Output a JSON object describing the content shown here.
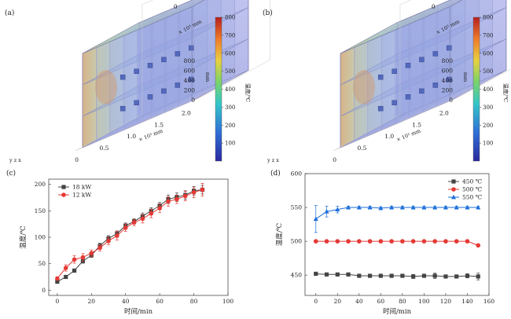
{
  "panel_labels": [
    "(a)",
    "(b)",
    "(c)",
    "(d)"
  ],
  "sim_panels": [
    {
      "label": "(a)",
      "axis_text": {
        "top_unit": "× 10³ mm",
        "top_ticks": [
          "1.0",
          "0.5",
          "0"
        ],
        "vertical_unit": "mm",
        "vertical_ticks": [
          "800",
          "600",
          "400",
          "200",
          "0"
        ],
        "front_unit": "× 10³ mm",
        "front_ticks": [
          "0",
          "0.5",
          "1.0",
          "1.5",
          "2.0"
        ],
        "axes_triad": "y  z  x"
      },
      "colorbar": {
        "title": "温度/℃",
        "ticks": [
          "800",
          "700",
          "600",
          "500",
          "400",
          "300",
          "200",
          "100"
        ]
      }
    },
    {
      "label": "(b)",
      "axis_text": {
        "top_unit": "× 10³ mm",
        "top_ticks": [
          "1.0",
          "0.5",
          "0"
        ],
        "vertical_unit": "mm",
        "vertical_ticks": [
          "800",
          "600",
          "400",
          "200",
          "0"
        ],
        "front_unit": "× 10³ mm",
        "front_ticks": [
          "0",
          "0.5",
          "1.0",
          "1.5",
          "2.0"
        ],
        "axes_triad": "y  z  x"
      },
      "colorbar": {
        "title": "温度/℃",
        "ticks": [
          "800",
          "700",
          "600",
          "500",
          "400",
          "300",
          "200",
          "100"
        ]
      }
    }
  ],
  "chart_data": [
    {
      "label": "(c)",
      "type": "line",
      "xlabel": "时间/min",
      "ylabel": "温度/℃",
      "xlim": [
        -5,
        100
      ],
      "ylim": [
        -10,
        210
      ],
      "xticks": [
        "0",
        "20",
        "40",
        "60",
        "80",
        "100"
      ],
      "yticks": [
        "0",
        "50",
        "100",
        "150",
        "200"
      ],
      "legend_position": "top-left",
      "series": [
        {
          "name": "18 kW",
          "color": "#444444",
          "marker": "square",
          "x": [
            0,
            5,
            10,
            15,
            20,
            25,
            30,
            35,
            40,
            45,
            50,
            55,
            60,
            65,
            70,
            75,
            80,
            85
          ],
          "y": [
            16,
            25,
            37,
            55,
            66,
            84,
            98,
            107,
            122,
            130,
            140,
            150,
            160,
            172,
            176,
            180,
            188,
            190
          ],
          "err": [
            3,
            3,
            3,
            4,
            4,
            5,
            5,
            5,
            5,
            5,
            6,
            6,
            6,
            8,
            8,
            8,
            8,
            8
          ]
        },
        {
          "name": "12 kW",
          "color": "#e53935",
          "marker": "circle",
          "x": [
            0,
            5,
            10,
            15,
            20,
            25,
            30,
            35,
            40,
            45,
            50,
            55,
            60,
            65,
            70,
            75,
            80,
            85
          ],
          "y": [
            22,
            42,
            58,
            62,
            70,
            80,
            93,
            103,
            118,
            128,
            135,
            145,
            155,
            168,
            172,
            178,
            185,
            190
          ],
          "err": [
            3,
            6,
            7,
            7,
            6,
            6,
            7,
            8,
            7,
            6,
            8,
            8,
            8,
            9,
            8,
            9,
            10,
            12
          ]
        }
      ]
    },
    {
      "label": "(d)",
      "type": "line",
      "xlabel": "时间/min",
      "ylabel": "温度/℃",
      "xlim": [
        -10,
        160
      ],
      "ylim": [
        420,
        600
      ],
      "xticks": [
        "0",
        "20",
        "40",
        "60",
        "80",
        "100",
        "120",
        "140",
        "160"
      ],
      "yticks": [
        "450",
        "500",
        "550",
        "600"
      ],
      "legend_position": "top-right",
      "series": [
        {
          "name": "450 ℃",
          "color": "#444444",
          "marker": "square",
          "x": [
            0,
            10,
            20,
            30,
            40,
            50,
            60,
            70,
            80,
            90,
            100,
            110,
            120,
            130,
            140,
            150
          ],
          "y": [
            452,
            451,
            451,
            451,
            449,
            449,
            449,
            449,
            449,
            448,
            449,
            449,
            448,
            448,
            449,
            448
          ],
          "err": [
            2,
            2,
            2,
            2,
            2,
            2,
            2,
            2,
            2,
            3,
            2,
            4,
            2,
            2,
            3,
            5
          ]
        },
        {
          "name": "500 ℃",
          "color": "#e53935",
          "marker": "circle",
          "x": [
            0,
            10,
            20,
            30,
            40,
            50,
            60,
            70,
            80,
            90,
            100,
            110,
            120,
            130,
            140,
            150
          ],
          "y": [
            500,
            500,
            500,
            500,
            500,
            500,
            500,
            500,
            500,
            500,
            500,
            500,
            500,
            500,
            500,
            494
          ],
          "err": [
            1,
            1,
            1,
            1,
            1,
            1,
            1,
            1,
            1,
            1,
            1,
            1,
            1,
            1,
            1,
            1
          ]
        },
        {
          "name": "550 ℃",
          "color": "#1e6fd9",
          "marker": "triangle",
          "x": [
            0,
            10,
            20,
            30,
            40,
            50,
            60,
            70,
            80,
            90,
            100,
            110,
            120,
            130,
            140,
            150
          ],
          "y": [
            533,
            544,
            547,
            550,
            550,
            550,
            549,
            550,
            550,
            550,
            550,
            550,
            550,
            550,
            550,
            550
          ],
          "err": [
            20,
            8,
            5,
            2,
            2,
            2,
            2,
            2,
            2,
            2,
            2,
            2,
            2,
            2,
            2,
            2
          ]
        }
      ]
    }
  ]
}
